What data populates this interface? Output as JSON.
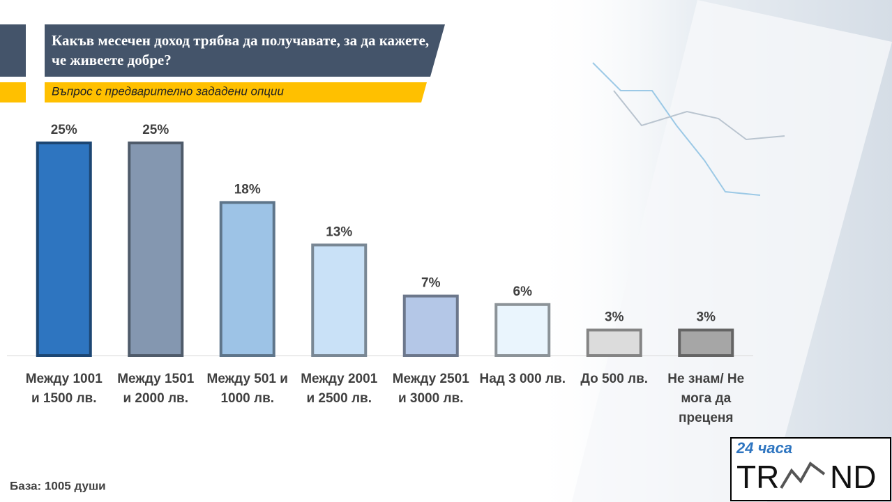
{
  "chart_data": {
    "type": "bar",
    "title": "Какъв месечен доход трябва да получавате, за да кажете, че живеете добре?",
    "subtitle": "Въпрос с предварително зададени опции",
    "categories": [
      "Между 1001 и 1500 лв.",
      "Между 1501 и 2000 лв.",
      "Между 501 и 1000 лв.",
      "Между 2001 и 2500 лв.",
      "Между 2501 и 3000 лв.",
      "Над 3 000 лв.",
      "До 500 лв.",
      "Не знам/ Не мога да преценя"
    ],
    "values": [
      25,
      25,
      18,
      13,
      7,
      6,
      3,
      3
    ],
    "value_labels": [
      "25%",
      "25%",
      "18%",
      "13%",
      "7%",
      "6%",
      "3%",
      "3%"
    ],
    "colors": [
      "#2e75c0",
      "#8497b0",
      "#9dc3e6",
      "#c9e1f7",
      "#b4c7e7",
      "#eaf5fd",
      "#dcdcdc",
      "#a6a6a6"
    ],
    "note": "База: 1005 души"
  },
  "logo": {
    "top": "24 часа",
    "left": "TR",
    "right": "ND"
  }
}
